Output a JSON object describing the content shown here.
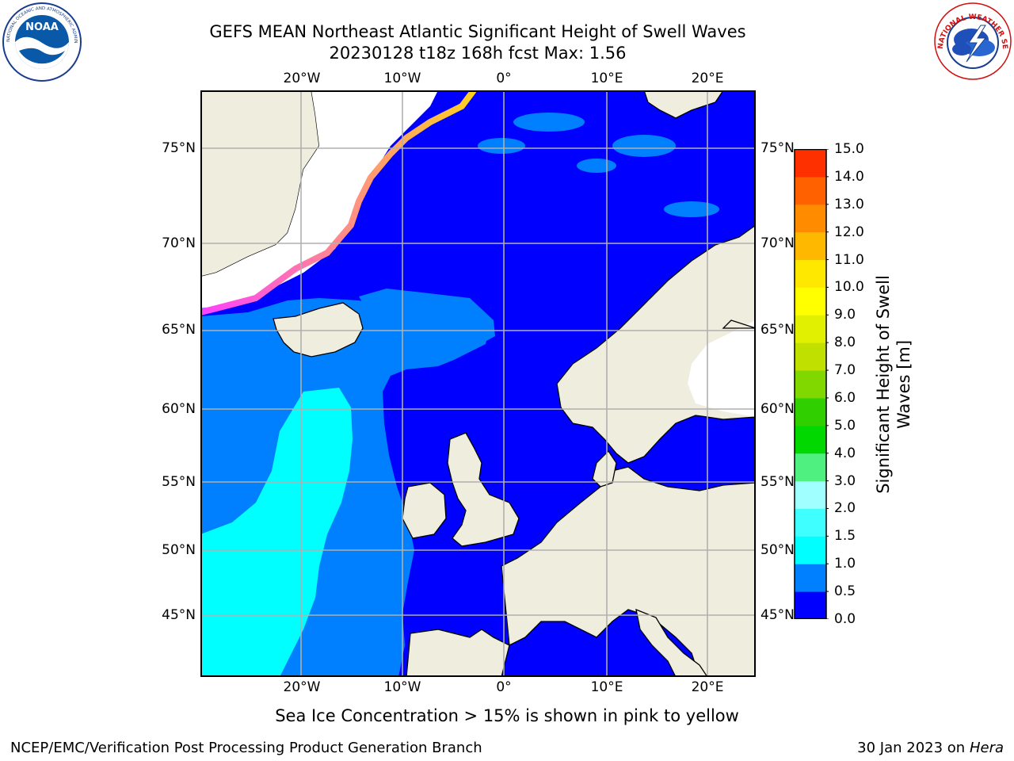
{
  "header": {
    "title_line1": "GEFS MEAN Northeast Atlantic Significant Height of Swell Waves",
    "title_line2": "20230128 t18z 168h fcst   Max: 1.56"
  },
  "logos": {
    "noaa_text": "NOAA",
    "noaa_ring_text": "NATIONAL OCEANIC AND ATMOSPHERIC ADMINISTRATION · U.S. DEPARTMENT OF COMMERCE",
    "nws_ring_text": "NATIONAL WEATHER SERVICE"
  },
  "map": {
    "lon_ticks_top": [
      "20°W",
      "10°W",
      "0°",
      "10°E",
      "20°E"
    ],
    "lon_ticks_bottom": [
      "20°W",
      "10°W",
      "0°",
      "10°E",
      "20°E"
    ],
    "lat_ticks_left": [
      "75°N",
      "70°N",
      "65°N",
      "60°N",
      "55°N",
      "50°N",
      "45°N"
    ],
    "lat_ticks_right": [
      "75°N",
      "70°N",
      "65°N",
      "60°N",
      "55°N",
      "50°N",
      "45°N"
    ],
    "colors": {
      "land": "#efedde",
      "ice_white": "#ffffff",
      "swell_0_0.5": "#0000ff",
      "swell_0.5_1.0": "#0080ff",
      "swell_1.0_1.5": "#00ffff",
      "ice_edge_pink": "#ff40ff",
      "ice_edge_yellow": "#ffd020",
      "grid": "#b0b0b0"
    }
  },
  "colorbar": {
    "title_line1": "Significant Height of Swell",
    "title_line2": "Waves [m]",
    "labels": [
      "15.0",
      "14.0",
      "13.0",
      "12.0",
      "11.0",
      "10.0",
      "9.0",
      "8.0",
      "7.0",
      "6.0",
      "5.0",
      "4.0",
      "3.0",
      "2.0",
      "1.5",
      "1.0",
      "0.5",
      "0.0"
    ],
    "colors": [
      "#0000ff",
      "#0080ff",
      "#00ffff",
      "#40ffff",
      "#a0ffff",
      "#50f080",
      "#00d800",
      "#30d000",
      "#80d800",
      "#c0e000",
      "#e0f000",
      "#ffff00",
      "#ffe800",
      "#ffb800",
      "#ff8c00",
      "#ff6000",
      "#ff3000",
      "#ff0000"
    ]
  },
  "note": "Sea Ice Concentration > 15% is shown in pink to yellow",
  "footer": {
    "left": "NCEP/EMC/Verification Post Processing Product Generation Branch",
    "right_prefix": "30 Jan 2023 on ",
    "right_machine": "Hera"
  }
}
